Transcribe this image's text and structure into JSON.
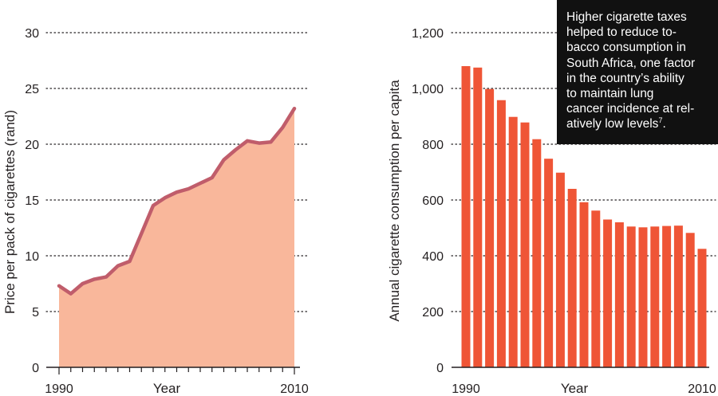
{
  "chart_data": [
    {
      "type": "area",
      "title": "",
      "xlabel": "Year",
      "ylabel": "Price per pack of cigarettes (rand)",
      "xlim": [
        1990,
        2010
      ],
      "ylim": [
        0,
        30
      ],
      "grid": true,
      "x_ticks": [
        "1990",
        "2010"
      ],
      "y_ticks": [
        "0",
        "5",
        "10",
        "15",
        "20",
        "25",
        "30"
      ],
      "fill_color": "#f9b79b",
      "line_color": "#c05d6b",
      "x": [
        1990,
        1991,
        1992,
        1993,
        1994,
        1995,
        1996,
        1997,
        1998,
        1999,
        2000,
        2001,
        2002,
        2003,
        2004,
        2005,
        2006,
        2007,
        2008,
        2009,
        2010
      ],
      "values": [
        7.3,
        6.6,
        7.5,
        7.9,
        8.1,
        9.1,
        9.5,
        12.0,
        14.5,
        15.2,
        15.7,
        16.0,
        16.5,
        17.0,
        18.6,
        19.5,
        20.3,
        20.1,
        20.2,
        21.5,
        23.2
      ]
    },
    {
      "type": "bar",
      "title": "",
      "xlabel": "Year",
      "ylabel": "Annual cigarette consumption per capita",
      "ylim": [
        0,
        1200
      ],
      "grid": true,
      "x_ticks": [
        "1990",
        "2010"
      ],
      "y_ticks": [
        "0",
        "200",
        "400",
        "600",
        "800",
        "1,000",
        "1,200"
      ],
      "bar_color": "#ef5536",
      "categories": [
        1990,
        1991,
        1992,
        1993,
        1994,
        1995,
        1996,
        1997,
        1998,
        1999,
        2000,
        2001,
        2002,
        2003,
        2004,
        2005,
        2006,
        2007,
        2008,
        2009,
        2010
      ],
      "values": [
        1080,
        1075,
        998,
        958,
        898,
        878,
        818,
        748,
        698,
        640,
        592,
        562,
        530,
        520,
        505,
        502,
        505,
        507,
        508,
        482,
        425
      ]
    }
  ],
  "annotation": {
    "lines": [
      "Higher cigarette taxes",
      "helped to reduce to-",
      "bacco consumption in",
      "South Africa, one factor",
      "in the country’s ability",
      "to maintain lung",
      "cancer incidence at rel-",
      "atively low levels"
    ],
    "superscript": "7",
    "end_punct": "."
  }
}
